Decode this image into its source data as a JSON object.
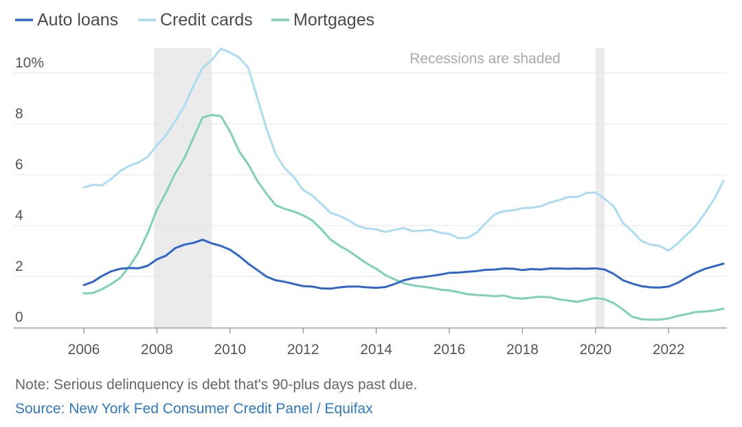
{
  "chart_data": {
    "type": "line",
    "title": "",
    "xlabel": "",
    "ylabel": "",
    "xlim": [
      2005,
      2024
    ],
    "ylim": [
      0,
      10
    ],
    "legend_placement": "top-left",
    "grid": true,
    "x_ticks": [
      {
        "value": 2006,
        "label": "2006"
      },
      {
        "value": 2008,
        "label": "2008"
      },
      {
        "value": 2010,
        "label": "2010"
      },
      {
        "value": 2012,
        "label": "2012"
      },
      {
        "value": 2014,
        "label": "2014"
      },
      {
        "value": 2016,
        "label": "2016"
      },
      {
        "value": 2018,
        "label": "2018"
      },
      {
        "value": 2020,
        "label": "2020"
      },
      {
        "value": 2022,
        "label": "2022"
      }
    ],
    "y_ticks": [
      {
        "value": 0,
        "label": "0"
      },
      {
        "value": 2,
        "label": "2"
      },
      {
        "value": 4,
        "label": "4"
      },
      {
        "value": 6,
        "label": "6"
      },
      {
        "value": 8,
        "label": "8"
      },
      {
        "value": 10,
        "label": "10%"
      }
    ],
    "recessions": [
      {
        "start": 2007.92,
        "end": 2009.5
      },
      {
        "start": 2020.0,
        "end": 2020.25
      }
    ],
    "annotation": "Recessions are shaded",
    "series": [
      {
        "name": "Auto loans",
        "color": "#2d66cc",
        "x": [
          2006.0,
          2006.25,
          2006.5,
          2006.75,
          2007.0,
          2007.25,
          2007.5,
          2007.75,
          2008.0,
          2008.25,
          2008.5,
          2008.75,
          2009.0,
          2009.25,
          2009.5,
          2009.75,
          2010.0,
          2010.25,
          2010.5,
          2010.75,
          2011.0,
          2011.25,
          2011.5,
          2011.75,
          2012.0,
          2012.25,
          2012.5,
          2012.75,
          2013.0,
          2013.25,
          2013.5,
          2013.75,
          2014.0,
          2014.25,
          2014.5,
          2014.75,
          2015.0,
          2015.25,
          2015.5,
          2015.75,
          2016.0,
          2016.25,
          2016.5,
          2016.75,
          2017.0,
          2017.25,
          2017.5,
          2017.75,
          2018.0,
          2018.25,
          2018.5,
          2018.75,
          2019.0,
          2019.25,
          2019.5,
          2019.75,
          2020.0,
          2020.25,
          2020.5,
          2020.75,
          2021.0,
          2021.25,
          2021.5,
          2021.75,
          2022.0,
          2022.25,
          2022.5,
          2022.75,
          2023.0,
          2023.25,
          2023.5
        ],
        "values": [
          1.66,
          1.79,
          2.02,
          2.2,
          2.3,
          2.33,
          2.32,
          2.42,
          2.67,
          2.82,
          3.11,
          3.25,
          3.32,
          3.44,
          3.3,
          3.2,
          3.05,
          2.8,
          2.5,
          2.25,
          1.99,
          1.85,
          1.79,
          1.7,
          1.62,
          1.6,
          1.53,
          1.52,
          1.57,
          1.6,
          1.6,
          1.57,
          1.55,
          1.58,
          1.7,
          1.85,
          1.93,
          1.97,
          2.02,
          2.07,
          2.14,
          2.15,
          2.18,
          2.21,
          2.26,
          2.27,
          2.31,
          2.3,
          2.25,
          2.29,
          2.27,
          2.31,
          2.31,
          2.3,
          2.31,
          2.3,
          2.32,
          2.27,
          2.1,
          1.85,
          1.72,
          1.62,
          1.57,
          1.56,
          1.6,
          1.75,
          1.96,
          2.15,
          2.3,
          2.4,
          2.5
        ]
      },
      {
        "name": "Credit cards",
        "color": "#aadcf2",
        "x": [
          2006.0,
          2006.25,
          2006.5,
          2006.75,
          2007.0,
          2007.25,
          2007.5,
          2007.75,
          2008.0,
          2008.25,
          2008.5,
          2008.75,
          2009.0,
          2009.25,
          2009.5,
          2009.75,
          2010.0,
          2010.25,
          2010.5,
          2010.75,
          2011.0,
          2011.25,
          2011.5,
          2011.75,
          2012.0,
          2012.25,
          2012.5,
          2012.75,
          2013.0,
          2013.25,
          2013.5,
          2013.75,
          2014.0,
          2014.25,
          2014.5,
          2014.75,
          2015.0,
          2015.25,
          2015.5,
          2015.75,
          2016.0,
          2016.25,
          2016.5,
          2016.75,
          2017.0,
          2017.25,
          2017.5,
          2017.75,
          2018.0,
          2018.25,
          2018.5,
          2018.75,
          2019.0,
          2019.25,
          2019.5,
          2019.75,
          2020.0,
          2020.25,
          2020.5,
          2020.75,
          2021.0,
          2021.25,
          2021.5,
          2021.75,
          2022.0,
          2022.25,
          2022.5,
          2022.75,
          2023.0,
          2023.25,
          2023.5
        ],
        "values": [
          5.5,
          5.6,
          5.58,
          5.83,
          6.15,
          6.35,
          6.48,
          6.7,
          7.15,
          7.55,
          8.1,
          8.7,
          9.5,
          10.2,
          10.5,
          10.95,
          10.8,
          10.6,
          10.2,
          9.0,
          7.8,
          6.8,
          6.25,
          5.9,
          5.4,
          5.18,
          4.85,
          4.5,
          4.38,
          4.2,
          3.98,
          3.88,
          3.85,
          3.75,
          3.83,
          3.9,
          3.78,
          3.8,
          3.83,
          3.72,
          3.67,
          3.5,
          3.52,
          3.72,
          4.1,
          4.45,
          4.57,
          4.6,
          4.68,
          4.7,
          4.76,
          4.9,
          5.0,
          5.12,
          5.12,
          5.28,
          5.3,
          5.05,
          4.75,
          4.1,
          3.78,
          3.4,
          3.25,
          3.2,
          3.02,
          3.3,
          3.65,
          4.0,
          4.5,
          5.05,
          5.75
        ]
      },
      {
        "name": "Mortgages",
        "color": "#7ed1b9",
        "x": [
          2006.0,
          2006.25,
          2006.5,
          2006.75,
          2007.0,
          2007.25,
          2007.5,
          2007.75,
          2008.0,
          2008.25,
          2008.5,
          2008.75,
          2009.0,
          2009.25,
          2009.5,
          2009.75,
          2010.0,
          2010.25,
          2010.5,
          2010.75,
          2011.0,
          2011.25,
          2011.5,
          2011.75,
          2012.0,
          2012.25,
          2012.5,
          2012.75,
          2013.0,
          2013.25,
          2013.5,
          2013.75,
          2014.0,
          2014.25,
          2014.5,
          2014.75,
          2015.0,
          2015.25,
          2015.5,
          2015.75,
          2016.0,
          2016.25,
          2016.5,
          2016.75,
          2017.0,
          2017.25,
          2017.5,
          2017.75,
          2018.0,
          2018.25,
          2018.5,
          2018.75,
          2019.0,
          2019.25,
          2019.5,
          2019.75,
          2020.0,
          2020.25,
          2020.5,
          2020.75,
          2021.0,
          2021.25,
          2021.5,
          2021.75,
          2022.0,
          2022.25,
          2022.5,
          2022.75,
          2023.0,
          2023.25,
          2023.5
        ],
        "values": [
          1.33,
          1.35,
          1.5,
          1.7,
          1.95,
          2.4,
          2.95,
          3.72,
          4.62,
          5.3,
          6.05,
          6.65,
          7.45,
          8.25,
          8.35,
          8.3,
          7.7,
          6.92,
          6.4,
          5.75,
          5.25,
          4.8,
          4.65,
          4.55,
          4.4,
          4.2,
          3.85,
          3.45,
          3.2,
          3.0,
          2.75,
          2.5,
          2.3,
          2.05,
          1.88,
          1.73,
          1.65,
          1.6,
          1.55,
          1.48,
          1.45,
          1.38,
          1.3,
          1.27,
          1.25,
          1.22,
          1.25,
          1.15,
          1.13,
          1.17,
          1.2,
          1.18,
          1.1,
          1.05,
          1.0,
          1.08,
          1.15,
          1.1,
          0.95,
          0.7,
          0.42,
          0.32,
          0.3,
          0.3,
          0.35,
          0.45,
          0.52,
          0.6,
          0.62,
          0.66,
          0.73
        ]
      }
    ]
  },
  "footer": {
    "note": "Note: Serious delinquency is debt that's 90-plus days past due.",
    "source": "Source: New York Fed Consumer Credit Panel / Equifax"
  }
}
